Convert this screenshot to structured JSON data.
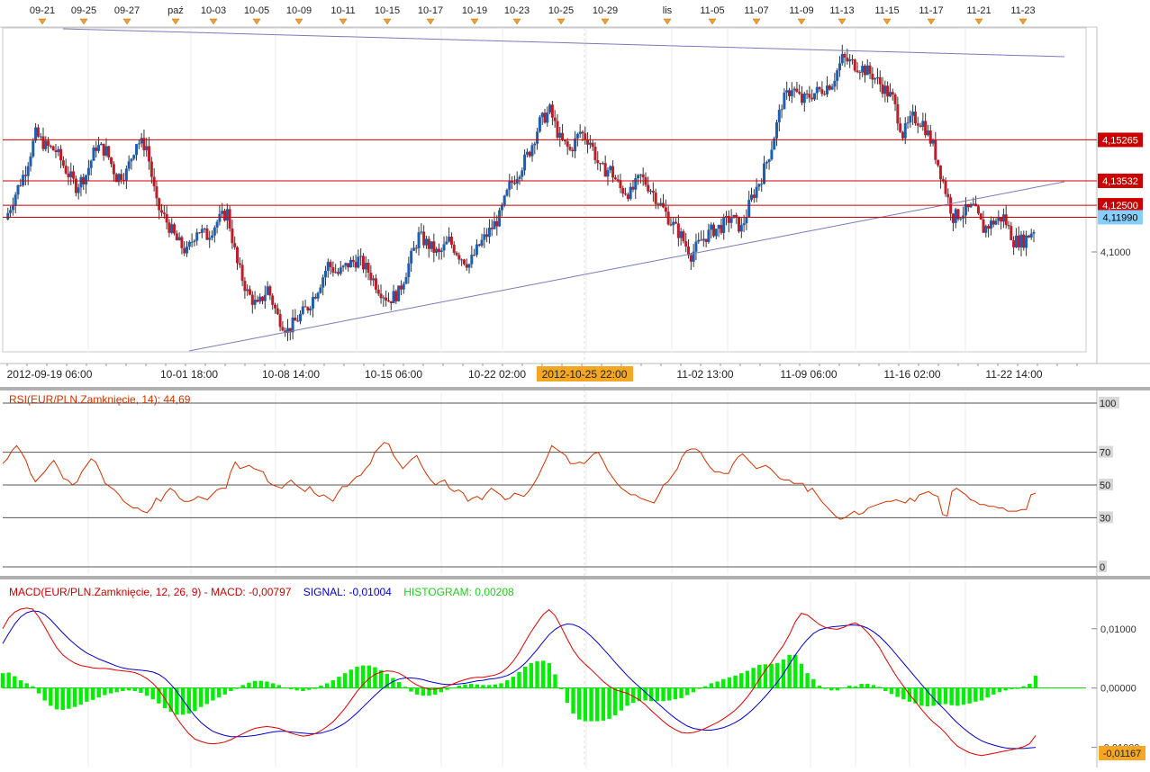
{
  "top_axis": {
    "labels": [
      "09-21",
      "09-25",
      "09-27",
      "paź",
      "10-03",
      "10-05",
      "10-09",
      "10-11",
      "10-15",
      "10-17",
      "10-19",
      "10-23",
      "10-25",
      "10-29",
      "lis",
      "11-05",
      "11-07",
      "11-09",
      "11-13",
      "11-15",
      "11-17",
      "11-21",
      "11-23"
    ]
  },
  "bottom_axis": {
    "labels": [
      "2012-09-19 06:00",
      "10-01 18:00",
      "10-08 14:00",
      "10-15 06:00",
      "10-22 02:00",
      "11-02 13:00",
      "11-09 06:00",
      "11-16 02:00",
      "11-22 14:00"
    ],
    "cursor_label": "2012-10-25 22:00"
  },
  "price_panel": {
    "y_tick_label": "4,1000",
    "levels": [
      {
        "value": 4.15265,
        "label": "4,15265",
        "color": "#cc0000"
      },
      {
        "value": 4.13532,
        "label": "4,13532",
        "color": "#cc0000"
      },
      {
        "value": 4.125,
        "label": "4,12500",
        "color": "#cc0000"
      },
      {
        "value": 4.1199,
        "label": "4,11990",
        "color": "#87cefa"
      }
    ],
    "colors": {
      "up": "#1a5fb4",
      "down": "#c01c28",
      "level": "#cc0000",
      "trend": "#7a7ab8"
    }
  },
  "rsi_panel": {
    "title": "RSI(EUR/PLN.Zamknięcie, 14): 44,69",
    "levels": [
      {
        "value": 100,
        "label": "100"
      },
      {
        "value": 70,
        "label": "70"
      },
      {
        "value": 50,
        "label": "50"
      },
      {
        "value": 30,
        "label": "30"
      },
      {
        "value": 0,
        "label": "0"
      }
    ],
    "color": "#cc3300"
  },
  "macd_panel": {
    "title_prefix": "MACD(EUR/PLN.Zamknięcie, 12, 26, 9) -  MACD: -0,00797",
    "title_signal": "SIGNAL: -0,01004",
    "title_hist": "HISTOGRAM: 0,00208",
    "y_labels": [
      {
        "value": 0.01,
        "label": "0,01000"
      },
      {
        "value": 0.0,
        "label": "0,00000"
      },
      {
        "value": -0.01,
        "label": "-0,01000"
      }
    ],
    "current_label": "-0,01167",
    "colors": {
      "macd": "#dd0000",
      "signal": "#0000cc",
      "hist": "#00ee00"
    }
  },
  "chart_data": [
    {
      "type": "candlestick",
      "title": "",
      "x_ticks": [
        "2012-09-19 06:00",
        "10-01 18:00",
        "10-08 14:00",
        "10-15 06:00",
        "10-22 02:00",
        "11-02 13:00",
        "11-09 06:00",
        "11-16 02:00",
        "11-22 14:00"
      ],
      "ylim": [
        4.063,
        4.2
      ],
      "close_series": [
        4.119,
        4.13,
        4.14,
        4.155,
        4.15,
        4.148,
        4.14,
        4.133,
        4.138,
        4.15,
        4.148,
        4.137,
        4.139,
        4.152,
        4.15,
        4.125,
        4.118,
        4.11,
        4.105,
        4.115,
        4.112,
        4.118,
        4.122,
        4.1,
        4.088,
        4.082,
        4.09,
        4.078,
        4.072,
        4.077,
        4.082,
        4.09,
        4.1,
        4.096,
        4.1,
        4.102,
        4.097,
        4.09,
        4.085,
        4.088,
        4.1,
        4.112,
        4.108,
        4.104,
        4.11,
        4.104,
        4.1,
        4.108,
        4.114,
        4.12,
        4.133,
        4.14,
        4.148,
        4.16,
        4.165,
        4.153,
        4.148,
        4.156,
        4.152,
        4.14,
        4.14,
        4.132,
        4.13,
        4.137,
        4.132,
        4.125,
        4.118,
        4.112,
        4.104,
        4.11,
        4.114,
        4.116,
        4.12,
        4.115,
        4.128,
        4.137,
        4.15,
        4.168,
        4.175,
        4.169,
        4.172,
        4.174,
        4.177,
        4.187,
        4.185,
        4.183,
        4.18,
        4.175,
        4.17,
        4.155,
        4.162,
        4.16,
        4.15,
        4.135,
        4.12,
        4.122,
        4.124,
        4.115,
        4.118,
        4.12,
        4.11,
        4.11,
        4.115
      ],
      "levels": [
        4.15265,
        4.13532,
        4.125,
        4.1199
      ]
    },
    {
      "type": "line",
      "title": "RSI(EUR/PLN.Zamknięcie, 14): 44,69",
      "ylim": [
        0,
        100
      ],
      "series": [
        {
          "name": "RSI",
          "values": [
            63,
            66,
            71,
            74,
            70,
            65,
            57,
            52,
            55,
            58,
            62,
            65,
            60,
            54,
            53,
            50,
            52,
            58,
            62,
            66,
            64,
            58,
            51,
            49,
            47,
            44,
            40,
            38,
            36,
            36,
            34,
            33,
            36,
            42,
            40,
            45,
            48,
            46,
            42,
            40,
            40,
            41,
            43,
            42,
            41,
            44,
            47,
            48,
            48,
            58,
            64,
            60,
            61,
            62,
            60,
            59,
            58,
            52,
            50,
            49,
            48,
            51,
            53,
            50,
            48,
            46,
            49,
            45,
            43,
            44,
            42,
            40,
            45,
            49,
            49,
            52,
            55,
            56,
            60,
            63,
            70,
            73,
            76,
            75,
            68,
            64,
            60,
            63,
            66,
            68,
            62,
            57,
            53,
            50,
            52,
            53,
            48,
            46,
            47,
            45,
            40,
            42,
            43,
            41,
            45,
            48,
            46,
            44,
            41,
            42,
            45,
            44,
            43,
            46,
            50,
            55,
            61,
            67,
            74,
            72,
            70,
            68,
            63,
            63,
            64,
            63,
            66,
            69,
            70,
            65,
            59,
            55,
            51,
            48,
            46,
            44,
            44,
            42,
            41,
            40,
            39,
            44,
            50,
            52,
            56,
            60,
            67,
            71,
            72,
            72,
            70,
            65,
            61,
            58,
            58,
            57,
            57,
            63,
            67,
            69,
            66,
            63,
            60,
            61,
            62,
            60,
            57,
            54,
            53,
            53,
            51,
            51,
            51,
            46,
            48,
            44,
            40,
            37,
            34,
            31,
            29,
            30,
            32,
            34,
            32,
            33,
            36,
            37,
            38,
            39,
            40,
            40,
            41,
            40,
            39,
            42,
            40,
            44,
            45,
            46,
            44,
            43,
            32,
            31,
            46,
            48,
            46,
            44,
            41,
            40,
            38,
            38,
            37,
            37,
            36,
            36,
            34,
            34,
            34,
            35,
            35,
            44,
            45
          ]
        }
      ]
    },
    {
      "type": "line",
      "title": "MACD(EUR/PLN.Zamknięcie, 12, 26, 9)",
      "ylim": [
        -0.0134,
        0.0177
      ],
      "series": [
        {
          "name": "MACD",
          "values": [
            0.01,
            0.0118,
            0.0128,
            0.0133,
            0.0135,
            0.0133,
            0.012,
            0.0103,
            0.0085,
            0.0068,
            0.0056,
            0.0048,
            0.0042,
            0.0038,
            0.0036,
            0.0034,
            0.0033,
            0.0033,
            0.0032,
            0.003,
            0.0029,
            0.0028,
            0.0026,
            0.0022,
            0.0016,
            0.0008,
            -0.0003,
            -0.0018,
            -0.0034,
            -0.0051,
            -0.0065,
            -0.0077,
            -0.0086,
            -0.009,
            -0.0093,
            -0.0094,
            -0.0093,
            -0.0091,
            -0.0087,
            -0.0082,
            -0.0077,
            -0.0072,
            -0.0068,
            -0.0066,
            -0.0065,
            -0.0066,
            -0.0068,
            -0.0072,
            -0.0076,
            -0.0079,
            -0.0081,
            -0.008,
            -0.0077,
            -0.0072,
            -0.0065,
            -0.0057,
            -0.0046,
            -0.0034,
            -0.002,
            -0.0006,
            0.0006,
            0.0016,
            0.0023,
            0.0027,
            0.0029,
            0.0028,
            0.0025,
            0.0019,
            0.0011,
            0.0005,
            0.0001,
            -0.0002,
            -0.0002,
            0.0,
            0.0003,
            0.0007,
            0.0011,
            0.0014,
            0.0017,
            0.0018,
            0.0018,
            0.002,
            0.0022,
            0.0026,
            0.0034,
            0.0045,
            0.006,
            0.0078,
            0.0095,
            0.011,
            0.0124,
            0.0132,
            0.0122,
            0.0103,
            0.0083,
            0.0064,
            0.005,
            0.004,
            0.0031,
            0.0021,
            0.0011,
            0.0003,
            -0.0003,
            -0.0006,
            -0.0009,
            -0.0014,
            -0.002,
            -0.0028,
            -0.0038,
            -0.0047,
            -0.0056,
            -0.0064,
            -0.007,
            -0.0075,
            -0.0076,
            -0.0075,
            -0.0072,
            -0.0068,
            -0.0063,
            -0.0058,
            -0.0052,
            -0.0045,
            -0.0037,
            -0.0027,
            -0.0015,
            -0.0001,
            0.0015,
            0.003,
            0.0043,
            0.0058,
            0.0072,
            0.009,
            0.0112,
            0.0126,
            0.0123,
            0.0115,
            0.0107,
            0.0102,
            0.01,
            0.0099,
            0.0102,
            0.0107,
            0.011,
            0.0104,
            0.0094,
            0.0082,
            0.0068,
            0.005,
            0.0033,
            0.0017,
            0.0003,
            -0.0011,
            -0.0023,
            -0.0036,
            -0.0048,
            -0.0058,
            -0.0066,
            -0.0076,
            -0.0088,
            -0.0098,
            -0.0104,
            -0.0109,
            -0.0112,
            -0.0114,
            -0.0112,
            -0.011,
            -0.0108,
            -0.0106,
            -0.0104,
            -0.0102,
            -0.0099,
            -0.0094,
            -0.008
          ]
        },
        {
          "name": "SIGNAL",
          "values": [
            0.0075,
            0.0092,
            0.0108,
            0.012,
            0.0127,
            0.013,
            0.0129,
            0.0124,
            0.0115,
            0.0104,
            0.0093,
            0.0083,
            0.0074,
            0.0066,
            0.0059,
            0.0054,
            0.0049,
            0.0045,
            0.0041,
            0.0037,
            0.0034,
            0.0032,
            0.0031,
            0.003,
            0.0029,
            0.0027,
            0.0023,
            0.0016,
            0.0006,
            -0.0006,
            -0.002,
            -0.0034,
            -0.0047,
            -0.0058,
            -0.0066,
            -0.0073,
            -0.0077,
            -0.008,
            -0.0082,
            -0.0082,
            -0.0082,
            -0.0081,
            -0.008,
            -0.0078,
            -0.0076,
            -0.0074,
            -0.0073,
            -0.0073,
            -0.0074,
            -0.0075,
            -0.0076,
            -0.0077,
            -0.0077,
            -0.0076,
            -0.0073,
            -0.007,
            -0.0065,
            -0.0059,
            -0.0051,
            -0.0042,
            -0.0032,
            -0.0022,
            -0.0012,
            -0.0003,
            0.0005,
            0.0011,
            0.0015,
            0.0017,
            0.0017,
            0.0016,
            0.0014,
            0.0011,
            0.0009,
            0.0007,
            0.0006,
            0.0006,
            0.0007,
            0.0008,
            0.001,
            0.0012,
            0.0013,
            0.0015,
            0.0016,
            0.0018,
            0.0021,
            0.0026,
            0.0033,
            0.0042,
            0.0053,
            0.0065,
            0.0078,
            0.009,
            0.0099,
            0.0105,
            0.0108,
            0.0107,
            0.0103,
            0.0096,
            0.0087,
            0.0077,
            0.0066,
            0.0055,
            0.0043,
            0.0032,
            0.0021,
            0.0011,
            0.0002,
            -0.0007,
            -0.0016,
            -0.0025,
            -0.0034,
            -0.0043,
            -0.0051,
            -0.0058,
            -0.0064,
            -0.0068,
            -0.007,
            -0.0071,
            -0.0071,
            -0.0069,
            -0.0067,
            -0.0063,
            -0.0058,
            -0.0052,
            -0.0044,
            -0.0035,
            -0.0025,
            -0.0014,
            -0.0002,
            0.001,
            0.0024,
            0.004,
            0.0056,
            0.007,
            0.0082,
            0.0092,
            0.0098,
            0.0101,
            0.0103,
            0.0104,
            0.0105,
            0.0106,
            0.0106,
            0.0105,
            0.0101,
            0.0095,
            0.0087,
            0.0077,
            0.0066,
            0.0054,
            0.0042,
            0.003,
            0.0018,
            0.0006,
            -0.0006,
            -0.0017,
            -0.0028,
            -0.0038,
            -0.0049,
            -0.0059,
            -0.0068,
            -0.0076,
            -0.0083,
            -0.0089,
            -0.0093,
            -0.0096,
            -0.0099,
            -0.0101,
            -0.0102,
            -0.0102,
            -0.0102,
            -0.0101,
            -0.01
          ]
        },
        {
          "name": "HISTOGRAM",
          "values": [
            0.0025,
            0.0026,
            0.002,
            0.0013,
            0.0008,
            0.0003,
            -0.0009,
            -0.0021,
            -0.003,
            -0.0036,
            -0.0037,
            -0.0035,
            -0.0032,
            -0.0028,
            -0.0023,
            -0.002,
            -0.0016,
            -0.0012,
            -0.0009,
            -0.0007,
            -0.0005,
            -0.0004,
            -0.0005,
            -0.0008,
            -0.0013,
            -0.0019,
            -0.0026,
            -0.0034,
            -0.004,
            -0.0045,
            -0.0045,
            -0.0043,
            -0.0039,
            -0.0032,
            -0.0027,
            -0.0021,
            -0.0016,
            -0.0011,
            -0.0005,
            0.0,
            0.0005,
            0.0009,
            0.0012,
            0.0012,
            0.0011,
            0.0008,
            0.0005,
            0.0001,
            -0.0002,
            -0.0004,
            -0.0005,
            -0.0003,
            0.0,
            0.0004,
            0.0008,
            0.0013,
            0.0019,
            0.0025,
            0.0031,
            0.0036,
            0.0038,
            0.0038,
            0.0035,
            0.003,
            0.0024,
            0.0017,
            0.001,
            0.0002,
            -0.0006,
            -0.0011,
            -0.0013,
            -0.0013,
            -0.0011,
            -0.0007,
            -0.0003,
            0.0001,
            0.0004,
            0.0006,
            0.0007,
            0.0006,
            0.0005,
            0.0005,
            0.0006,
            0.0008,
            0.0013,
            0.0019,
            0.0027,
            0.0036,
            0.0042,
            0.0045,
            0.0046,
            0.0042,
            0.0023,
            -0.0002,
            -0.0025,
            -0.0043,
            -0.0053,
            -0.0056,
            -0.0056,
            -0.0056,
            -0.0055,
            -0.0052,
            -0.0046,
            -0.0038,
            -0.003,
            -0.0025,
            -0.0022,
            -0.0021,
            -0.0022,
            -0.0022,
            -0.0022,
            -0.0021,
            -0.0019,
            -0.0017,
            -0.0012,
            -0.0007,
            -0.0001,
            0.0003,
            0.0008,
            0.0011,
            0.0015,
            0.0018,
            0.0021,
            0.0025,
            0.0029,
            0.0034,
            0.0039,
            0.004,
            0.0041,
            0.0042,
            0.0048,
            0.0056,
            0.0056,
            0.0041,
            0.0025,
            0.0015,
            0.0004,
            -0.0001,
            -0.0004,
            -0.0004,
            0.0001,
            0.0004,
            0.0003,
            0.0007,
            0.0007,
            0.0005,
            0.0002,
            -0.0005,
            -0.001,
            -0.0015,
            -0.0019,
            -0.0023,
            -0.0026,
            -0.003,
            -0.0031,
            -0.003,
            -0.0028,
            -0.0027,
            -0.0029,
            -0.003,
            -0.0028,
            -0.0026,
            -0.0023,
            -0.0021,
            -0.0016,
            -0.0011,
            -0.0007,
            -0.0004,
            -0.0002,
            0.0,
            0.0003,
            0.0007,
            0.0021
          ]
        }
      ]
    }
  ]
}
